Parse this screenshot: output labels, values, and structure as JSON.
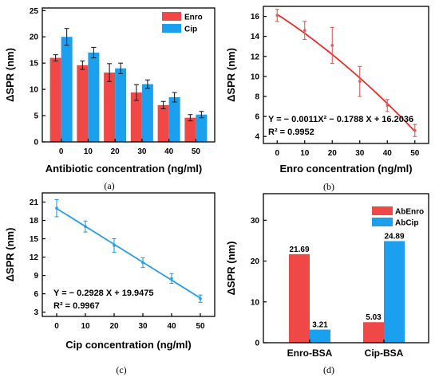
{
  "colors": {
    "red": "#f04747",
    "blue": "#1aa0ef",
    "ptRed": "#e05a5a",
    "fitRed": "#ee2a2a",
    "lineBlue": "#2a9ee4"
  },
  "chart_data": [
    {
      "panel": "a",
      "caption": "(a)",
      "type": "bar",
      "xlabel": "Antibiotic concentration (ng/ml)",
      "ylabel": "ΔSPR (nm)",
      "categories": [
        "0",
        "10",
        "20",
        "30",
        "40",
        "50"
      ],
      "yticks": [
        "0",
        "5",
        "10",
        "15",
        "20",
        "25"
      ],
      "ylim": [
        0,
        25.5
      ],
      "legend_position": "top-right",
      "series": [
        {
          "name": "Enro",
          "color": "#f04747",
          "values": [
            16.0,
            14.6,
            13.2,
            9.4,
            7.0,
            4.6
          ],
          "errors": [
            0.6,
            0.8,
            1.7,
            1.5,
            0.7,
            0.6
          ]
        },
        {
          "name": "Cip",
          "color": "#1aa0ef",
          "values": [
            20.0,
            17.0,
            14.0,
            11.0,
            8.5,
            5.2
          ],
          "errors": [
            1.6,
            1.0,
            1.0,
            0.8,
            0.9,
            0.6
          ]
        }
      ]
    },
    {
      "panel": "b",
      "caption": "(b)",
      "type": "scatter",
      "xlabel": "Enro concentration (ng/ml)",
      "ylabel": "ΔSPR (nm)",
      "xticks": [
        "0",
        "10",
        "20",
        "30",
        "40",
        "50"
      ],
      "yticks": [
        "4",
        "6",
        "8",
        "10",
        "12",
        "14",
        "16"
      ],
      "xlim": [
        -5,
        55
      ],
      "ylim": [
        3.3,
        17.0
      ],
      "points": {
        "x": [
          0,
          10,
          20,
          30,
          40,
          50
        ],
        "y": [
          16.1,
          14.6,
          13.1,
          9.5,
          7.1,
          4.6
        ],
        "errors": [
          0.6,
          0.9,
          1.8,
          1.5,
          0.6,
          0.6
        ]
      },
      "fit": {
        "type": "quadratic",
        "coefficients": [
          -0.0011,
          -0.1788,
          16.2036
        ]
      },
      "equation": "Y = − 0.0011X² − 0.1788 X + 16.2036",
      "r2": "R² = 0.9952"
    },
    {
      "panel": "c",
      "caption": "(c)",
      "type": "scatter",
      "xlabel": "Cip concentration (ng/ml)",
      "ylabel": "ΔSPR (nm)",
      "xticks": [
        "0",
        "10",
        "20",
        "30",
        "40",
        "50"
      ],
      "yticks": [
        "3",
        "6",
        "9",
        "12",
        "15",
        "18",
        "21"
      ],
      "xlim": [
        -5,
        55
      ],
      "ylim": [
        2.3,
        22.5
      ],
      "points": {
        "x": [
          0,
          10,
          20,
          30,
          40,
          50
        ],
        "y": [
          20.0,
          17.0,
          13.9,
          11.1,
          8.5,
          5.2
        ],
        "errors": [
          1.4,
          0.9,
          1.1,
          0.8,
          0.8,
          0.6
        ]
      },
      "fit": {
        "type": "linear",
        "coefficients": [
          -0.2928,
          19.9475
        ]
      },
      "equation": "Y = − 0.2928 X + 19.9475",
      "r2": "R² = 0.9967"
    },
    {
      "panel": "d",
      "caption": "(d)",
      "type": "bar",
      "xlabel": "",
      "ylabel": "ΔSPR (nm)",
      "categories": [
        "Enro-BSA",
        "Cip-BSA"
      ],
      "yticks": [
        "0",
        "10",
        "20",
        "30"
      ],
      "ylim": [
        0,
        36.5
      ],
      "legend_position": "top-right",
      "series": [
        {
          "name": "AbEnro",
          "color": "#f04747",
          "values": [
            21.69,
            5.03
          ],
          "labels": [
            "21.69",
            "5.03"
          ]
        },
        {
          "name": "AbCip",
          "color": "#1aa0ef",
          "values": [
            3.21,
            24.89
          ],
          "labels": [
            "3.21",
            "24.89"
          ]
        }
      ]
    }
  ]
}
